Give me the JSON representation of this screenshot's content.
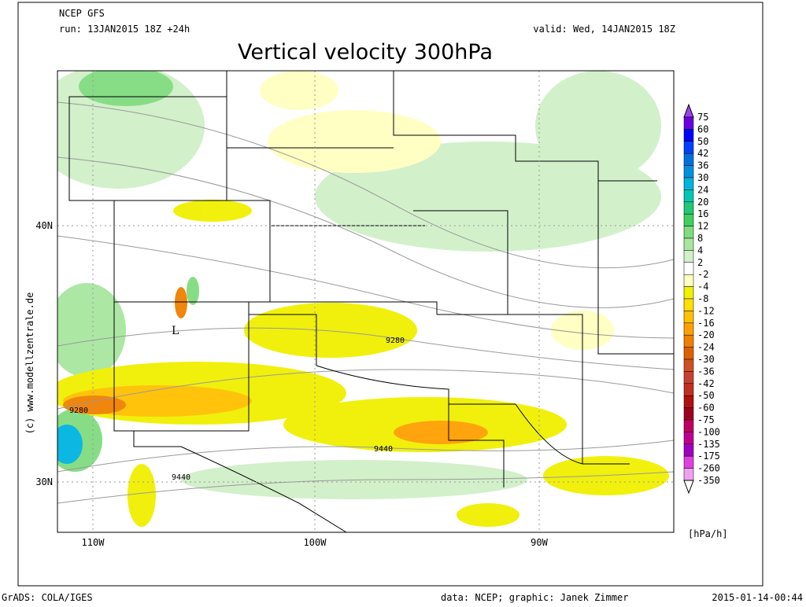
{
  "header": {
    "model": "NCEP GFS",
    "run": "run: 13JAN2015 18Z +24h",
    "valid": "valid: Wed, 14JAN2015 18Z",
    "title": "Vertical velocity 300hPa"
  },
  "map": {
    "lat_labels": [
      "40N",
      "30N"
    ],
    "lon_labels": [
      "110W",
      "100W",
      "90W"
    ],
    "contour_labels": [
      "9280",
      "9280",
      "9440",
      "9440"
    ],
    "low_marker": "L",
    "watermark": "(c) www.modellzentrale.de"
  },
  "colorbar": {
    "labels": [
      75,
      60,
      50,
      42,
      36,
      30,
      24,
      20,
      16,
      12,
      8,
      4,
      2,
      -2,
      -4,
      -8,
      -12,
      -16,
      -20,
      -24,
      -30,
      -36,
      -42,
      -50,
      -60,
      -75,
      -100,
      -135,
      -175,
      -260,
      -350
    ],
    "colors": [
      "#a040f0",
      "#6a00e0",
      "#0000ff",
      "#0040ff",
      "#0070e0",
      "#0090e0",
      "#00b4e0",
      "#00c8b4",
      "#20c878",
      "#40d060",
      "#80dc80",
      "#a8e6a0",
      "#d0f0c8",
      "#ffffff",
      "#ffffc0",
      "#f0f000",
      "#ffe000",
      "#ffc000",
      "#ffa000",
      "#f08000",
      "#e06000",
      "#d05020",
      "#c84030",
      "#c03020",
      "#b01010",
      "#a00020",
      "#c00060",
      "#c00090",
      "#a000c0",
      "#e040e0",
      "#f0a0f0",
      "#ffffff"
    ],
    "unit": "[hPa/h]"
  },
  "footer": {
    "left": "GrADS: COLA/IGES",
    "center": "data: NCEP; graphic: Janek Zimmer",
    "right": "2015-01-14-00:44"
  }
}
